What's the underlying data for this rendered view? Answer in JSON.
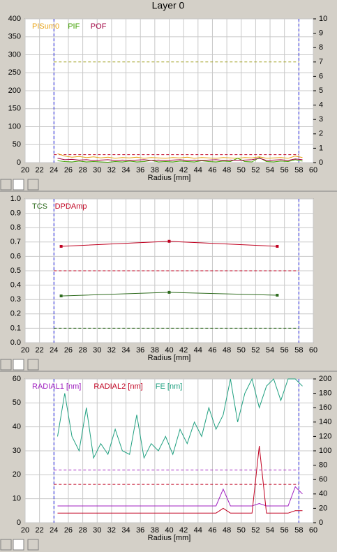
{
  "title": "Layer 0",
  "chart_data": [
    {
      "type": "line",
      "xlabel": "Radius [mm]",
      "xlim": [
        20,
        60
      ],
      "xticks": [
        20,
        22,
        24,
        26,
        28,
        30,
        32,
        34,
        36,
        38,
        40,
        42,
        44,
        46,
        48,
        50,
        52,
        54,
        56,
        58,
        60
      ],
      "ylim": [
        0,
        400
      ],
      "yticks": [
        0,
        50,
        100,
        150,
        200,
        250,
        300,
        350,
        400
      ],
      "y2lim": [
        0,
        10
      ],
      "y2ticks": [
        0,
        1,
        2,
        3,
        4,
        5,
        6,
        7,
        8,
        9,
        10
      ],
      "vlines": [
        24,
        58
      ],
      "grid": true,
      "reference_lines": [
        {
          "value": 280,
          "color": "#a0a020"
        },
        {
          "value": 22,
          "color": "#c00020"
        }
      ],
      "x": [
        24.5,
        25.5,
        26.5,
        27.5,
        28.5,
        29.5,
        30.5,
        31.5,
        32.5,
        33.5,
        34.5,
        35.5,
        36.5,
        37.5,
        38.5,
        39.5,
        40.5,
        41.5,
        42.5,
        43.5,
        44.5,
        45.5,
        46.5,
        47.5,
        48.5,
        49.5,
        50.5,
        51.5,
        52.5,
        53.5,
        54.5,
        55.5,
        56.5,
        57.5,
        58.5
      ],
      "series": [
        {
          "name": "PISum0",
          "color": "#e8a317",
          "values": [
            25,
            18,
            15,
            17,
            14,
            16,
            13,
            15,
            12,
            14,
            13,
            15,
            12,
            14,
            13,
            12,
            14,
            13,
            15,
            12,
            14,
            13,
            12,
            14,
            13,
            12,
            14,
            13,
            16,
            12,
            13,
            14,
            12,
            18,
            14
          ]
        },
        {
          "name": "PIF",
          "color": "#40a000",
          "values": [
            5,
            3,
            2,
            4,
            2,
            3,
            2,
            1,
            3,
            2,
            4,
            2,
            3,
            6,
            2,
            3,
            2,
            4,
            3,
            2,
            5,
            3,
            2,
            4,
            3,
            12,
            3,
            2,
            14,
            3,
            2,
            4,
            3,
            8,
            4
          ]
        },
        {
          "name": "POF",
          "color": "#a00040",
          "values": [
            12,
            8,
            9,
            7,
            8,
            6,
            7,
            8,
            6,
            7,
            6,
            7,
            8,
            6,
            7,
            6,
            7,
            8,
            6,
            7,
            6,
            7,
            8,
            6,
            7,
            6,
            7,
            8,
            12,
            6,
            7,
            8,
            6,
            10,
            8
          ]
        }
      ]
    },
    {
      "type": "line",
      "xlabel": "Radius [mm]",
      "xlim": [
        20,
        60
      ],
      "xticks": [
        20,
        22,
        24,
        26,
        28,
        30,
        32,
        34,
        36,
        38,
        40,
        42,
        44,
        46,
        48,
        50,
        52,
        54,
        56,
        58,
        60
      ],
      "ylim": [
        0,
        1
      ],
      "yticks": [
        {
          "value": 0,
          "label": "0.0"
        },
        0.1,
        0.2,
        0.3,
        0.4,
        0.5,
        0.6,
        0.7,
        0.8,
        0.9,
        {
          "value": 1,
          "label": "1.0"
        }
      ],
      "vlines": [
        24,
        58
      ],
      "grid": true,
      "markers": true,
      "reference_lines": [
        {
          "value": 0.5,
          "color": "#c00020"
        },
        {
          "value": 0.1,
          "color": "#2e6b1e"
        }
      ],
      "x": [
        25,
        40,
        55
      ],
      "series": [
        {
          "name": "TCS",
          "color": "#2e6b1e",
          "values": [
            0.325,
            0.35,
            0.33
          ]
        },
        {
          "name": "DPDAmp",
          "color": "#c00020",
          "values": [
            0.67,
            0.705,
            0.67
          ]
        }
      ]
    },
    {
      "type": "line",
      "xlabel": "Radius [mm]",
      "xlim": [
        20,
        60
      ],
      "xticks": [
        20,
        22,
        24,
        26,
        28,
        30,
        32,
        34,
        36,
        38,
        40,
        42,
        44,
        46,
        48,
        50,
        52,
        54,
        56,
        58,
        60
      ],
      "ylim": [
        0,
        60
      ],
      "yticks": [
        0,
        10,
        20,
        30,
        40,
        50,
        60
      ],
      "y2lim": [
        0,
        200
      ],
      "y2ticks": [
        0,
        20,
        40,
        60,
        80,
        100,
        120,
        140,
        160,
        180,
        200
      ],
      "vlines": [
        24,
        58
      ],
      "grid": true,
      "reference_lines": [
        {
          "value": 22,
          "color": "#a020c0"
        },
        {
          "value": 16,
          "color": "#c00020"
        }
      ],
      "x": [
        24.5,
        25.5,
        26.5,
        27.5,
        28.5,
        29.5,
        30.5,
        31.5,
        32.5,
        33.5,
        34.5,
        35.5,
        36.5,
        37.5,
        38.5,
        39.5,
        40.5,
        41.5,
        42.5,
        43.5,
        44.5,
        45.5,
        46.5,
        47.5,
        48.5,
        49.5,
        50.5,
        51.5,
        52.5,
        53.5,
        54.5,
        55.5,
        56.5,
        57.5,
        58.5
      ],
      "series": [
        {
          "name": "RADIAL1 [nm]",
          "color": "#a020c0",
          "values": [
            7,
            7,
            7,
            7,
            7,
            7,
            7,
            7,
            7,
            7,
            7,
            7,
            7,
            7,
            7,
            7,
            7,
            7,
            7,
            7,
            7,
            7,
            7,
            14,
            7,
            7,
            7,
            7,
            8,
            7,
            7,
            7,
            7,
            15,
            12
          ]
        },
        {
          "name": "RADIAL2 [nm]",
          "color": "#c00020",
          "values": [
            4,
            4,
            4,
            4,
            4,
            4,
            4,
            4,
            4,
            4,
            4,
            4,
            4,
            4,
            4,
            4,
            4,
            4,
            4,
            4,
            4,
            4,
            4,
            6,
            4,
            4,
            4,
            4,
            32,
            4,
            4,
            4,
            4,
            5,
            5
          ]
        },
        {
          "name": "FE [nm]",
          "color": "#20a080",
          "axis": "y2",
          "values": [
            120,
            180,
            120,
            100,
            160,
            90,
            110,
            95,
            130,
            100,
            95,
            150,
            90,
            110,
            100,
            120,
            95,
            130,
            110,
            140,
            120,
            160,
            130,
            150,
            200,
            140,
            180,
            200,
            160,
            190,
            200,
            170,
            200,
            200,
            190
          ]
        }
      ]
    }
  ]
}
